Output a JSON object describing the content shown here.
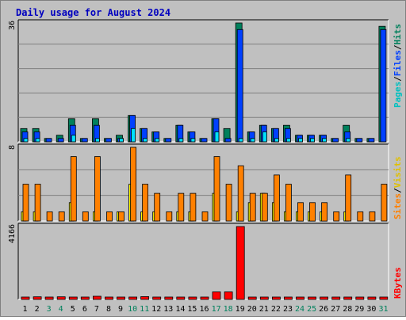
{
  "chart_data": [
    {
      "type": "bar",
      "title": "Daily usage for August 2024",
      "panel": "Hits / Files / Pages",
      "ylabels": [
        "Pages",
        "Files",
        "Hits"
      ],
      "ymax_label": "36",
      "categories": [
        "1",
        "2",
        "3",
        "4",
        "5",
        "6",
        "7",
        "8",
        "9",
        "10",
        "11",
        "12",
        "13",
        "14",
        "15",
        "16",
        "17",
        "18",
        "19",
        "20",
        "21",
        "22",
        "23",
        "24",
        "25",
        "26",
        "27",
        "28",
        "29",
        "30",
        "31"
      ],
      "weekend_days": [
        "3",
        "4",
        "10",
        "11",
        "17",
        "18",
        "24",
        "25",
        "31"
      ],
      "ylim": [
        0,
        36
      ],
      "series": [
        {
          "name": "Hits",
          "color": "#00805c",
          "values": [
            4,
            4,
            1,
            2,
            7,
            1,
            7,
            1,
            2,
            8,
            4,
            3,
            1,
            5,
            3,
            1,
            7,
            4,
            36,
            3,
            5,
            4,
            5,
            2,
            2,
            2,
            1,
            5,
            1,
            1,
            35
          ]
        },
        {
          "name": "Files",
          "color": "#0040ff",
          "values": [
            3,
            3,
            1,
            1,
            5,
            1,
            5,
            1,
            1,
            8,
            4,
            3,
            1,
            5,
            3,
            1,
            7,
            1,
            34,
            3,
            5,
            4,
            4,
            2,
            2,
            2,
            1,
            3,
            1,
            1,
            34
          ]
        },
        {
          "name": "Pages",
          "color": "#00e0ff",
          "values": [
            1,
            1,
            0,
            0,
            2,
            0,
            1,
            0,
            1,
            4,
            1,
            1,
            0,
            1,
            1,
            0,
            3,
            0,
            1,
            1,
            3,
            1,
            1,
            1,
            1,
            1,
            0,
            1,
            0,
            0,
            0
          ]
        }
      ]
    },
    {
      "type": "bar",
      "panel": "Visits / Sites",
      "ylabels": [
        "Sites",
        "Visits"
      ],
      "ymax_label": "8",
      "categories": [
        "1",
        "2",
        "3",
        "4",
        "5",
        "6",
        "7",
        "8",
        "9",
        "10",
        "11",
        "12",
        "13",
        "14",
        "15",
        "16",
        "17",
        "18",
        "19",
        "20",
        "21",
        "22",
        "23",
        "24",
        "25",
        "26",
        "27",
        "28",
        "29",
        "30",
        "31"
      ],
      "ylim": [
        0,
        8
      ],
      "series": [
        {
          "name": "Visits",
          "color": "#ffff00",
          "values": [
            1,
            1,
            0,
            0,
            2,
            0,
            1,
            0,
            1,
            4,
            1,
            1,
            0,
            1,
            1,
            0,
            3,
            0,
            1,
            2,
            3,
            2,
            1,
            1,
            1,
            1,
            0,
            1,
            0,
            0,
            0
          ]
        },
        {
          "name": "Sites",
          "color": "#ff8000",
          "values": [
            4,
            4,
            1,
            1,
            7,
            1,
            7,
            1,
            1,
            8,
            4,
            3,
            1,
            3,
            3,
            1,
            7,
            4,
            6,
            3,
            3,
            5,
            4,
            2,
            2,
            2,
            1,
            5,
            1,
            1,
            4
          ]
        }
      ]
    },
    {
      "type": "bar",
      "panel": "KBytes",
      "ylabels": [
        "KBytes"
      ],
      "ymax_label": "4166",
      "categories": [
        "1",
        "2",
        "3",
        "4",
        "5",
        "6",
        "7",
        "8",
        "9",
        "10",
        "11",
        "12",
        "13",
        "14",
        "15",
        "16",
        "17",
        "18",
        "19",
        "20",
        "21",
        "22",
        "23",
        "24",
        "25",
        "26",
        "27",
        "28",
        "29",
        "30",
        "31"
      ],
      "ylim": [
        0,
        4166
      ],
      "series": [
        {
          "name": "KBytes",
          "color": "#ff0000",
          "values": [
            20,
            150,
            20,
            150,
            20,
            20,
            180,
            20,
            20,
            20,
            160,
            20,
            20,
            20,
            20,
            20,
            430,
            430,
            4166,
            20,
            20,
            20,
            20,
            20,
            20,
            20,
            20,
            20,
            20,
            20,
            20
          ]
        }
      ]
    }
  ]
}
